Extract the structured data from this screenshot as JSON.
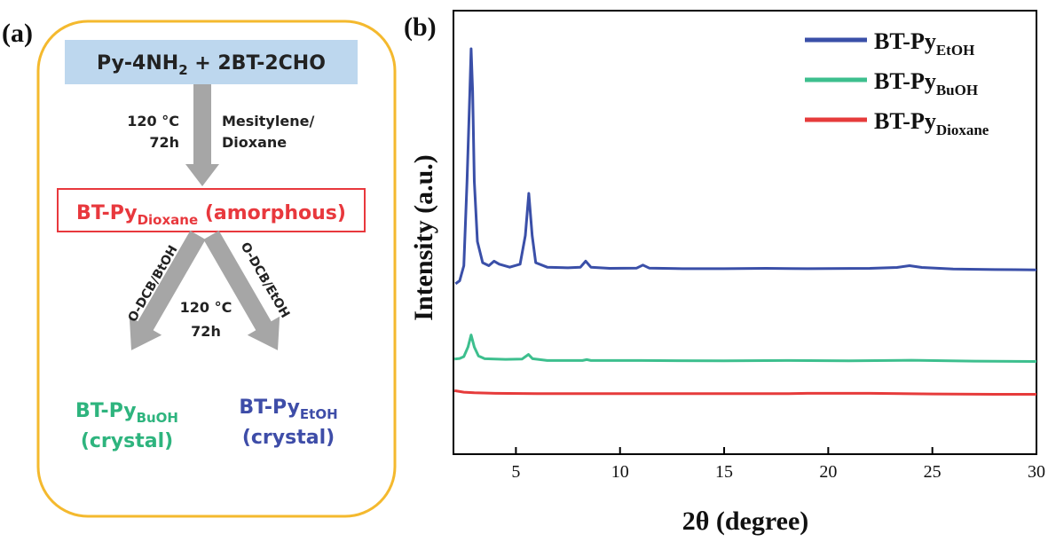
{
  "panel_a": {
    "label": "(a)",
    "start": {
      "main": "Py-4NH",
      "sub": "2",
      "rest": " + 2BT-2CHO"
    },
    "cond_top": {
      "temp": "120 °C",
      "time": "72h",
      "solvent_1": "Mesitylene/",
      "solvent_2": "Dioxane"
    },
    "intermediate": {
      "main": "BT-Py",
      "sub": "Dioxane",
      "rest": " (amorphous)"
    },
    "solvent_left": "O-DCB/BtOH",
    "solvent_right": "O-DCB/EtOH",
    "cond_mid": {
      "temp": "120 °C",
      "time": "72h"
    },
    "product_left": {
      "main": "BT-Py",
      "sub": "BuOH",
      "state": "(crystal)"
    },
    "product_right": {
      "main": "BT-Py",
      "sub": "EtOH",
      "state": "(crystal)"
    },
    "colors": {
      "frame": "#F4B92E",
      "start_box": "#BDD7EE",
      "arrow": "#A6A6A6",
      "red": "#E8383D",
      "green": "#2EB47E",
      "blue": "#3E4DA8",
      "text": "#222222"
    }
  },
  "panel_b": {
    "label": "(b)",
    "chart_data": {
      "type": "line",
      "xlabel": "2θ (degree)",
      "ylabel": "Intensity (a.u.)",
      "xlim": [
        2,
        30
      ],
      "xticks": [
        5,
        10,
        15,
        20,
        25,
        30
      ],
      "y_tick_labels": false,
      "grid": false,
      "legend_position": "top-right",
      "y_units": "arbitrary units, stacked",
      "series": [
        {
          "name": "BT-Py",
          "name_sub": "EtOH",
          "color": "#3A4FA8",
          "points": [
            [
              2.1,
              0.56
            ],
            [
              2.3,
              0.57
            ],
            [
              2.5,
              0.62
            ],
            [
              2.65,
              0.9
            ],
            [
              2.78,
              1.18
            ],
            [
              2.85,
              1.34
            ],
            [
              2.92,
              1.2
            ],
            [
              3.0,
              0.9
            ],
            [
              3.15,
              0.7
            ],
            [
              3.4,
              0.63
            ],
            [
              3.7,
              0.62
            ],
            [
              3.95,
              0.635
            ],
            [
              4.2,
              0.625
            ],
            [
              4.7,
              0.615
            ],
            [
              5.2,
              0.625
            ],
            [
              5.45,
              0.72
            ],
            [
              5.62,
              0.86
            ],
            [
              5.78,
              0.72
            ],
            [
              5.95,
              0.63
            ],
            [
              6.5,
              0.615
            ],
            [
              7.5,
              0.613
            ],
            [
              8.1,
              0.615
            ],
            [
              8.35,
              0.635
            ],
            [
              8.6,
              0.615
            ],
            [
              9.5,
              0.611
            ],
            [
              10.8,
              0.612
            ],
            [
              11.1,
              0.622
            ],
            [
              11.4,
              0.612
            ],
            [
              13,
              0.61
            ],
            [
              15,
              0.61
            ],
            [
              17,
              0.611
            ],
            [
              19,
              0.61
            ],
            [
              22,
              0.611
            ],
            [
              23.3,
              0.614
            ],
            [
              23.9,
              0.62
            ],
            [
              24.5,
              0.614
            ],
            [
              26,
              0.609
            ],
            [
              28,
              0.607
            ],
            [
              30,
              0.606
            ]
          ]
        },
        {
          "name": "BT-Py",
          "name_sub": "BuOH",
          "color": "#3DBF8E",
          "points": [
            [
              2.05,
              0.31
            ],
            [
              2.3,
              0.312
            ],
            [
              2.5,
              0.318
            ],
            [
              2.7,
              0.35
            ],
            [
              2.85,
              0.39
            ],
            [
              3.0,
              0.35
            ],
            [
              3.2,
              0.32
            ],
            [
              3.5,
              0.311
            ],
            [
              4.5,
              0.309
            ],
            [
              5.3,
              0.31
            ],
            [
              5.6,
              0.325
            ],
            [
              5.8,
              0.311
            ],
            [
              6.5,
              0.305
            ],
            [
              8.2,
              0.305
            ],
            [
              8.4,
              0.308
            ],
            [
              8.6,
              0.305
            ],
            [
              11,
              0.305
            ],
            [
              15,
              0.304
            ],
            [
              18,
              0.305
            ],
            [
              21,
              0.304
            ],
            [
              24,
              0.306
            ],
            [
              27,
              0.303
            ],
            [
              30,
              0.302
            ]
          ]
        },
        {
          "name": "BT-Py",
          "name_sub": "Dioxane",
          "color": "#E63B3B",
          "points": [
            [
              2.05,
              0.205
            ],
            [
              2.5,
              0.2
            ],
            [
              3.0,
              0.198
            ],
            [
              4,
              0.196
            ],
            [
              6,
              0.195
            ],
            [
              10,
              0.195
            ],
            [
              14,
              0.195
            ],
            [
              18,
              0.195
            ],
            [
              19,
              0.196
            ],
            [
              22,
              0.196
            ],
            [
              25,
              0.194
            ],
            [
              28,
              0.193
            ],
            [
              30,
              0.193
            ]
          ]
        }
      ]
    }
  }
}
